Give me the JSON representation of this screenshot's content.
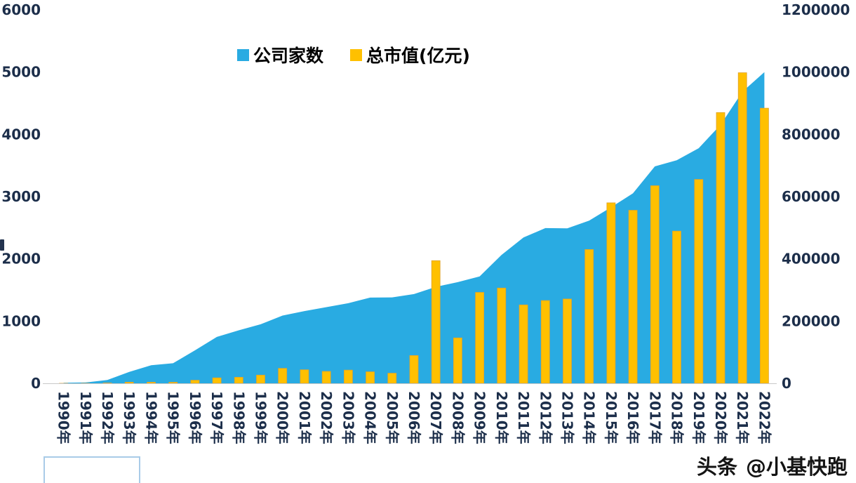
{
  "chart_data": {
    "type": "combo",
    "title": "",
    "grid": false,
    "categories": [
      "1990年",
      "1991年",
      "1992年",
      "1993年",
      "1994年",
      "1995年",
      "1996年",
      "1997年",
      "1998年",
      "1999年",
      "2000年",
      "2001年",
      "2002年",
      "2003年",
      "2004年",
      "2005年",
      "2006年",
      "2007年",
      "2008年",
      "2009年",
      "2010年",
      "2011年",
      "2012年",
      "2013年",
      "2014年",
      "2015年",
      "2016年",
      "2017年",
      "2018年",
      "2019年",
      "2020年",
      "2021年",
      "2022年"
    ],
    "series": [
      {
        "name": "公司家数",
        "type": "area",
        "axis": "left",
        "color": "#29ABE2",
        "values": [
          8,
          14,
          53,
          183,
          291,
          323,
          530,
          745,
          851,
          949,
          1088,
          1160,
          1224,
          1287,
          1377,
          1381,
          1434,
          1550,
          1625,
          1718,
          2063,
          2342,
          2494,
          2489,
          2613,
          2827,
          3052,
          3485,
          3584,
          3777,
          4154,
          4685,
          5000
        ]
      },
      {
        "name": "总市值(亿元)",
        "type": "bar",
        "axis": "right",
        "color": "#FFC000",
        "values": [
          12,
          109,
          1048,
          3531,
          3691,
          3474,
          9842,
          17529,
          19506,
          26471,
          48091,
          43522,
          38329,
          42458,
          37056,
          32430,
          89404,
          394000,
          146000,
          292000,
          306000,
          252000,
          266000,
          271000,
          430000,
          580000,
          556000,
          635000,
          489000,
          655000,
          870000,
          998000,
          884000
        ]
      }
    ],
    "left_axis": {
      "min": 0,
      "max": 6000,
      "tick_labels": [
        "6000",
        "5000",
        "4000",
        "3000",
        "2000",
        "1000",
        "0"
      ]
    },
    "right_axis": {
      "min": 0,
      "max": 1200000,
      "tick_labels": [
        "1200000",
        "1000000",
        "800000",
        "600000",
        "400000",
        "200000",
        "0"
      ]
    },
    "x_axis": {
      "label_rotation": 90
    },
    "legend": {
      "position": "top-center",
      "items": [
        {
          "label": "公司家数",
          "color": "#29ABE2"
        },
        {
          "label": "总市值(亿元)",
          "color": "#FFC000"
        }
      ]
    }
  },
  "watermark": {
    "brand": "头条",
    "handle": "@小基快跑"
  },
  "colors": {
    "area": "#29ABE2",
    "bar": "#FFC000",
    "axis_text": "#1C2E4A",
    "background": "#FFFFFF",
    "box_border": "#A9CBE8"
  }
}
